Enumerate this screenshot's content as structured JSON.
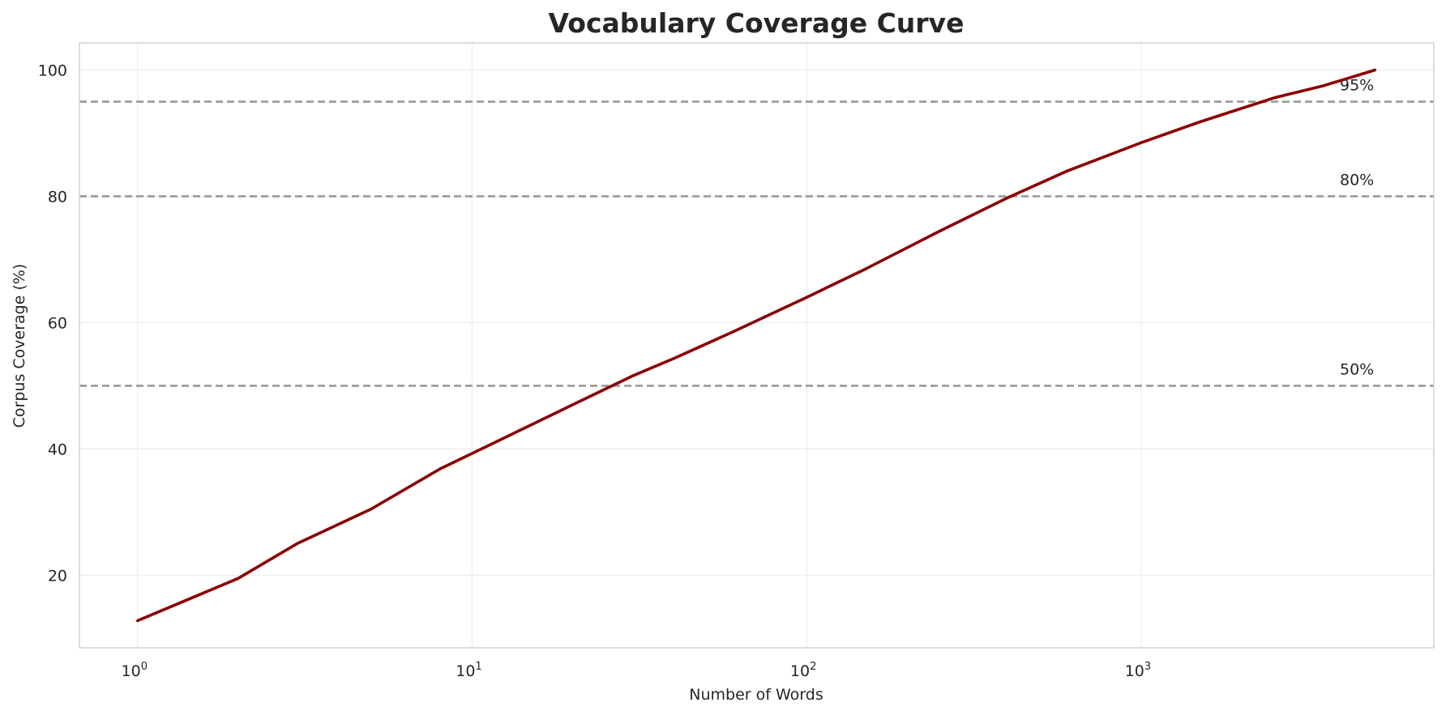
{
  "chart_data": {
    "type": "line",
    "title": "Vocabulary Coverage Curve",
    "xlabel": "Number of Words",
    "ylabel": "Corpus Coverage (%)",
    "x_scale": "log",
    "xlim": [
      0.67,
      7500
    ],
    "ylim": [
      8.5,
      104.3
    ],
    "x_ticks": [
      {
        "value": 1,
        "base": "10",
        "exp": "0"
      },
      {
        "value": 10,
        "base": "10",
        "exp": "1"
      },
      {
        "value": 100,
        "base": "10",
        "exp": "2"
      },
      {
        "value": 1000,
        "base": "10",
        "exp": "3"
      }
    ],
    "y_ticks": [
      20,
      40,
      60,
      80,
      100
    ],
    "grid": true,
    "series": [
      {
        "color": "#8b0000",
        "x": [
          1,
          2,
          3,
          5,
          8,
          13,
          20,
          30,
          40,
          60,
          100,
          150,
          250,
          400,
          600,
          1000,
          1500,
          2500,
          3500,
          5000
        ],
        "y": [
          12.8,
          19.5,
          25.0,
          30.5,
          36.8,
          42.2,
          47.0,
          51.5,
          54.3,
          58.5,
          64.0,
          68.5,
          74.5,
          79.8,
          84.0,
          88.5,
          91.8,
          95.6,
          97.5,
          100.0
        ]
      }
    ],
    "reference_lines": [
      {
        "y": 95,
        "label": "95%",
        "color": "#999999"
      },
      {
        "y": 80,
        "label": "80%",
        "color": "#999999"
      },
      {
        "y": 50,
        "label": "50%",
        "color": "#999999"
      }
    ]
  }
}
